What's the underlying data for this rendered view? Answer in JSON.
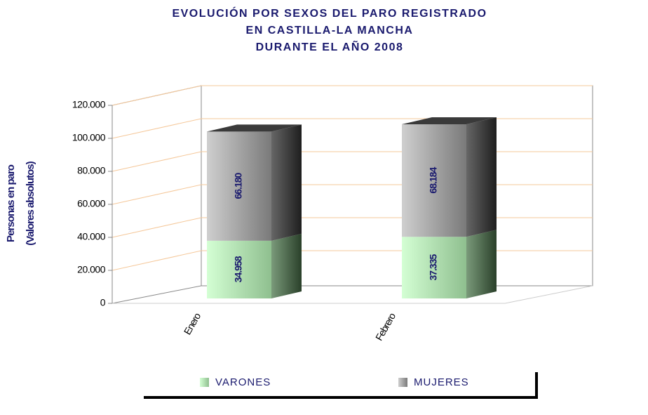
{
  "chart_data": {
    "type": "bar3d_stacked",
    "title": [
      "EVOLUCIÓN POR SEXOS DEL PARO REGISTRADO",
      "EN CASTILLA-LA MANCHA",
      "DURANTE EL AÑO 2008"
    ],
    "y_label": [
      "Personas en paro",
      "(Valores absolutos)"
    ],
    "categories": [
      "Enero",
      "Febrero"
    ],
    "series": [
      {
        "name": "VARONES",
        "color": "#99cc99",
        "values": [
          34958,
          37335
        ],
        "value_labels": [
          "34.958",
          "37.335"
        ]
      },
      {
        "name": "MUJERES",
        "color": "#999999",
        "values": [
          66180,
          68184
        ],
        "value_labels": [
          "66.180",
          "68.184"
        ]
      }
    ],
    "ylim": [
      0,
      120000
    ],
    "yticks": [
      0,
      {
        "value": 20000,
        "label": "20.000"
      },
      {
        "value": 40000,
        "label": "40.000"
      },
      {
        "value": 60000,
        "label": "60.000"
      },
      {
        "value": 80000,
        "label": "80.000"
      },
      {
        "value": 100000,
        "label": "100.000"
      },
      {
        "value": 120000,
        "label": "120.000"
      }
    ],
    "grid": true,
    "legend": "bottom"
  }
}
